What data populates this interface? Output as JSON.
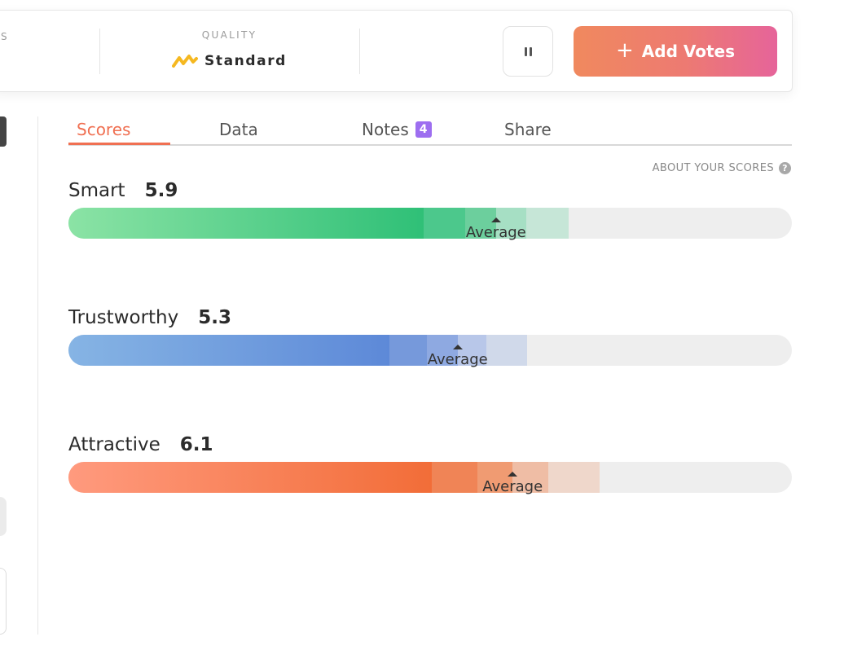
{
  "header": {
    "prev_label": "S",
    "quality_label": "QUALITY",
    "quality_value": "Standard",
    "quality_icon": "standard-quality-icon",
    "pause_icon": "pause-icon",
    "add_votes_label": "Add Votes",
    "add_votes_icon": "plus-icon"
  },
  "tabs": [
    {
      "label": "Scores",
      "active": true
    },
    {
      "label": "Data"
    },
    {
      "label": "Notes",
      "badge": "4"
    },
    {
      "label": "Share"
    }
  ],
  "about_scores": "ABOUT YOUR SCORES",
  "about_icon": "question-icon",
  "scores": [
    {
      "name": "Smart",
      "value": "5.9",
      "average_label": "Average",
      "average_pct": 59.1,
      "segments": [
        {
          "to": 49.1,
          "color_from": "#8be3a5",
          "color_to": "#2fc077"
        },
        {
          "to": 54.8,
          "color": "#4cc88c"
        },
        {
          "to": 59.1,
          "color": "#6ccf9d"
        },
        {
          "to": 63.3,
          "color": "#a6dfc4"
        },
        {
          "to": 69.1,
          "color": "#c6e6d7"
        }
      ]
    },
    {
      "name": "Trustworthy",
      "value": "5.3",
      "average_label": "Average",
      "average_pct": 53.8,
      "segments": [
        {
          "to": 44.4,
          "color_from": "#86b4e4",
          "color_to": "#5d89d8"
        },
        {
          "to": 49.5,
          "color": "#7699db"
        },
        {
          "to": 53.8,
          "color": "#8ea9e1"
        },
        {
          "to": 57.8,
          "color": "#b8c7e9"
        },
        {
          "to": 63.4,
          "color": "#d0d9ea"
        }
      ]
    },
    {
      "name": "Attractive",
      "value": "6.1",
      "average_label": "Average",
      "average_pct": 61.4,
      "segments": [
        {
          "to": 50.2,
          "color_from": "#ff9a7e",
          "color_to": "#f26d38"
        },
        {
          "to": 56.5,
          "color": "#f08456"
        },
        {
          "to": 61.4,
          "color": "#f09b72"
        },
        {
          "to": 66.3,
          "color": "#efbda5"
        },
        {
          "to": 73.4,
          "color": "#efd7cb"
        }
      ]
    }
  ]
}
